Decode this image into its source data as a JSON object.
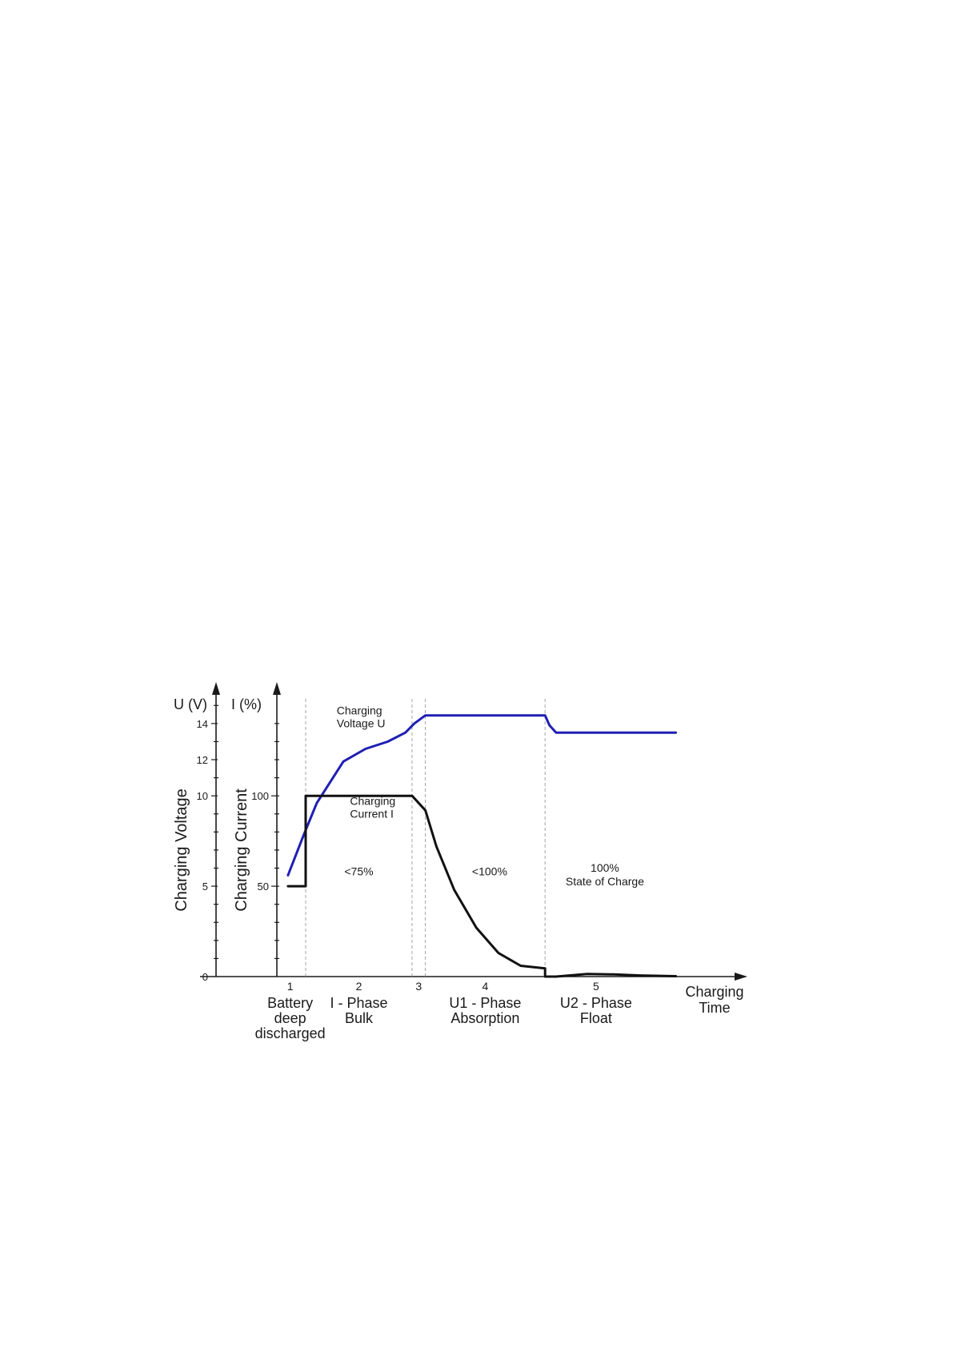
{
  "chart_data": {
    "type": "line",
    "left_axis": {
      "unit_label": "U (V)",
      "title": "Charging Voltage",
      "range": [
        0,
        15.5
      ],
      "ticks": [
        0,
        5,
        10,
        12,
        14
      ],
      "minor_ticks": [
        1,
        2,
        3,
        4,
        6,
        7,
        8,
        9,
        11,
        13,
        15
      ]
    },
    "right_axis": {
      "unit_label": "I (%)",
      "title": "Charging Current",
      "range": [
        0,
        155
      ],
      "ticks": [
        50,
        100
      ],
      "minor_ticks": [
        10,
        20,
        30,
        40,
        60,
        70,
        80,
        90,
        110,
        120,
        130,
        140
      ]
    },
    "x_axis": {
      "title_lines": [
        "Charging",
        "Time"
      ],
      "range": [
        0,
        10
      ]
    },
    "phase_boundaries": [
      0.65,
      3.05,
      3.35,
      6.05
    ],
    "phases": [
      {
        "number": "1",
        "x": 0.3,
        "name_lines": [
          "Battery",
          "deep",
          "discharged"
        ]
      },
      {
        "number": "2",
        "x": 1.85,
        "name_lines": [
          "I - Phase",
          "Bulk"
        ]
      },
      {
        "number": "3",
        "x": 3.2,
        "name_lines": []
      },
      {
        "number": "4",
        "x": 4.7,
        "name_lines": [
          "U1 - Phase",
          "Absorption"
        ]
      },
      {
        "number": "5",
        "x": 7.2,
        "name_lines": [
          "U2 - Phase",
          "Float"
        ]
      }
    ],
    "series": [
      {
        "name": "Charging Voltage U",
        "axis": "left",
        "color": "#1f1fb4",
        "points": [
          [
            0.25,
            5.6
          ],
          [
            0.6,
            7.8
          ],
          [
            0.9,
            9.6
          ],
          [
            1.5,
            11.9
          ],
          [
            2.0,
            12.6
          ],
          [
            2.5,
            13.0
          ],
          [
            2.9,
            13.5
          ],
          [
            3.1,
            14.0
          ],
          [
            3.35,
            14.45
          ],
          [
            6.05,
            14.45
          ],
          [
            6.15,
            13.9
          ],
          [
            6.3,
            13.5
          ],
          [
            7.2,
            13.5
          ],
          [
            9.0,
            13.5
          ]
        ],
        "label_lines": [
          "Charging",
          "Voltage U"
        ],
        "label_pos": [
          1.35,
          14.5
        ]
      },
      {
        "name": "Charging Current I",
        "axis": "right",
        "color": "#111111",
        "points": [
          [
            0.25,
            50
          ],
          [
            0.65,
            50
          ],
          [
            0.65,
            100
          ],
          [
            3.05,
            100
          ],
          [
            3.35,
            92
          ],
          [
            3.6,
            72
          ],
          [
            4.0,
            48
          ],
          [
            4.5,
            27
          ],
          [
            5.0,
            13
          ],
          [
            5.5,
            6
          ],
          [
            6.05,
            4.5
          ],
          [
            6.05,
            0
          ],
          [
            6.3,
            0
          ],
          [
            7.0,
            1.4
          ],
          [
            7.6,
            1.2
          ],
          [
            8.2,
            0.6
          ],
          [
            9.0,
            0.2
          ]
        ],
        "label_lines": [
          "Charging",
          "Current  I"
        ],
        "label_pos": [
          1.65,
          95
        ]
      }
    ],
    "annotations": [
      {
        "lines": [
          "<75%"
        ],
        "x": 1.85,
        "y": 56
      },
      {
        "lines": [
          "<100%"
        ],
        "x": 4.8,
        "y": 56
      },
      {
        "lines": [
          "100%",
          "State of Charge"
        ],
        "x": 7.4,
        "y": 58
      }
    ]
  }
}
